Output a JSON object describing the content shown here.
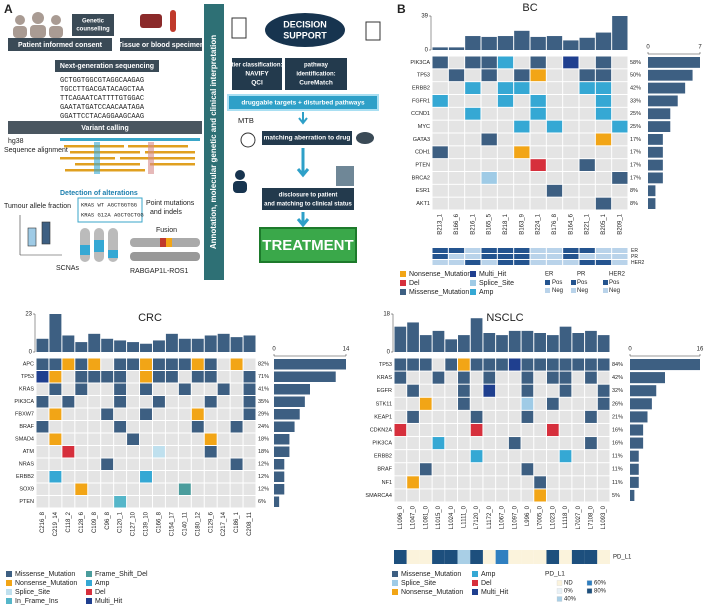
{
  "workflow": {
    "panel_label": "A",
    "consent": "Patient informed consent",
    "counselling": [
      "Genetic",
      "counselling"
    ],
    "specimen": "Tissue or blood specimen",
    "ngs": "Next-generation sequencing",
    "sequences": [
      "GCTGGTGGCGTAGGCAAGAG",
      "TGCCTTGACGATACAGCTAA",
      "TTCAGAATCATTTTGTGGAC",
      "GAATATGATCCAACAATAGA",
      "GGATTCCTACAGGAAGCAAG"
    ],
    "variant_calling": "Variant calling",
    "reference": "hg38",
    "alignment": "Sequence alignment",
    "detection": "Detection of alterations",
    "allele_fraction": "Tumour allele fraction",
    "kras": [
      "KRAS WT AGCTGGTGG",
      "KRAS G12A AGCTGCTGG"
    ],
    "point_mutations": [
      "Point mutations",
      "and indels"
    ],
    "fusion": "Fusion",
    "scnas": "SCNAs",
    "fusion_name": "RABGAP1L-ROS1",
    "annotation": "Annotation, molecular genetic and clinical interpretation",
    "decision": [
      "DECISION",
      "SUPPORT"
    ],
    "tier": [
      "tier classification:",
      "NAVIFY",
      "QCI"
    ],
    "pathway": [
      "pathway",
      "identification:",
      "CureMatch"
    ],
    "targets": "druggable targets + disturbed pathways",
    "mtb": "MTB",
    "matching": "matching aberration to drug",
    "disclosure": [
      "disclosure to patient",
      "and matching to clinical status"
    ],
    "treatment": "TREATMENT"
  },
  "chart_data": [
    {
      "type": "oncoprint",
      "panel_label": "B",
      "title": "BC",
      "samples": [
        "B213_1",
        "B166_6",
        "B216_1",
        "B165_5",
        "B218_1",
        "B163_9",
        "B224_1",
        "B176_8",
        "B164_6",
        "B221_1",
        "B205_1",
        "B209_1"
      ],
      "totals": [
        3,
        3,
        16,
        15,
        16,
        22,
        15,
        16,
        11,
        14,
        20,
        39
      ],
      "ylim": [
        0,
        39
      ],
      "yticks": [
        0,
        39
      ],
      "xlim": [
        0,
        7
      ],
      "xticks": [
        0,
        7
      ],
      "genes": [
        {
          "name": "PIK3CA",
          "pct": "58%",
          "count": 7,
          "alterations": "2.225.2.3.2."
        },
        {
          "name": "TP53",
          "pct": "50%",
          "count": 6,
          "alterations": ".2.2.20..22."
        },
        {
          "name": "ERBB2",
          "pct": "42%",
          "count": 5,
          "alterations": "..5.55...55."
        },
        {
          "name": "FGFR1",
          "pct": "33%",
          "count": 4,
          "alterations": "5...5.5...5."
        },
        {
          "name": "CCND1",
          "pct": "25%",
          "count": 3,
          "alterations": "..5...5...5."
        },
        {
          "name": "MYC",
          "pct": "25%",
          "count": 3,
          "alterations": ".....5.5...5"
        },
        {
          "name": "GATA3",
          "pct": "17%",
          "count": 2,
          "alterations": "...2......0."
        },
        {
          "name": "CDH1",
          "pct": "17%",
          "count": 2,
          "alterations": "2....0......"
        },
        {
          "name": "PTEN",
          "pct": "17%",
          "count": 2,
          "alterations": "......1..2.."
        },
        {
          "name": "BRCA2",
          "pct": "17%",
          "count": 2,
          "alterations": "...4.......2"
        },
        {
          "name": "ESR1",
          "pct": "8%",
          "count": 1,
          "alterations": ".......2...."
        },
        {
          "name": "AKT1",
          "pct": "8%",
          "count": 1,
          "alterations": "..........2."
        }
      ],
      "legend": [
        {
          "name": "Nonsense_Mutation",
          "color": "#f2a516"
        },
        {
          "name": "Del",
          "color": "#d62f3c"
        },
        {
          "name": "Missense_Mutation",
          "color": "#3d5f82"
        },
        {
          "name": "Multi_Hit",
          "color": "#1f3f8f"
        },
        {
          "name": "Splice_Site",
          "color": "#9fcbe6"
        },
        {
          "name": "Amp",
          "color": "#35a8d4"
        }
      ],
      "receptors": [
        {
          "name": "ER",
          "values": "001000110011"
        },
        {
          "name": "PR",
          "values": "011000110111"
        },
        {
          "name": "HER2",
          "values": "110100111001"
        }
      ],
      "receptor_legend": [
        {
          "name": "Pos",
          "color": "#24548f"
        },
        {
          "name": "Neg",
          "color": "#b9d3ea"
        }
      ]
    },
    {
      "type": "oncoprint",
      "title": "CRC",
      "samples": [
        "C216_8",
        "C219_14",
        "C118_2",
        "C128_6",
        "C109_8",
        "C96_8",
        "C120_1",
        "C127_10",
        "C139_10",
        "C166_8",
        "C154_17",
        "C140_11",
        "C180_12",
        "C129_6",
        "C217_14",
        "C186_1",
        "C208_11"
      ],
      "totals": [
        8,
        23,
        10,
        6,
        11,
        8,
        7,
        6,
        5,
        7,
        11,
        8,
        8,
        10,
        11,
        9,
        10
      ],
      "ylim": [
        0,
        23
      ],
      "yticks": [
        0,
        23
      ],
      "xlim": [
        0,
        14
      ],
      "xticks": [
        0,
        14
      ],
      "genes": [
        {
          "name": "APC",
          "pct": "82%",
          "count": 14,
          "alterations": "00101.00100010.1."
        },
        {
          "name": "TP53",
          "pct": "71%",
          "count": 12,
          "alterations": "71.0000.100.00..0"
        },
        {
          "name": "KRAS",
          "pct": "41%",
          "count": 7,
          "alterations": ".0.0..0.0..0..0.0"
        },
        {
          "name": "PIK3CA",
          "pct": "35%",
          "count": 6,
          "alterations": "0.0...0..0...0..0"
        },
        {
          "name": "FBXW7",
          "pct": "29%",
          "count": 5,
          "alterations": ".1...0..0...1...0"
        },
        {
          "name": "BRAF",
          "pct": "24%",
          "count": 4,
          "alterations": "0.....0.....0..0."
        },
        {
          "name": "SMAD4",
          "pct": "18%",
          "count": 3,
          "alterations": ".1.....0.....1..."
        },
        {
          "name": "ATM",
          "pct": "18%",
          "count": 3,
          "alterations": "..6......2...0..."
        },
        {
          "name": "NRAS",
          "pct": "12%",
          "count": 2,
          "alterations": ".....0.........0."
        },
        {
          "name": "ERBB2",
          "pct": "12%",
          "count": 2,
          "alterations": ".5......5........"
        },
        {
          "name": "SOX9",
          "pct": "12%",
          "count": 2,
          "alterations": "...1.......4....."
        },
        {
          "name": "PTEN",
          "pct": "6%",
          "count": 1,
          "alterations": "......3.........."
        }
      ],
      "legend": [
        {
          "name": "Missense_Mutation",
          "color": "#3d5f82"
        },
        {
          "name": "Nonsense_Mutation",
          "color": "#f2a516"
        },
        {
          "name": "Splice_Site",
          "color": "#bfe0ee"
        },
        {
          "name": "In_Frame_Ins",
          "color": "#55b6c9"
        },
        {
          "name": "Frame_Shift_Del",
          "color": "#4a9c9c"
        },
        {
          "name": "Amp",
          "color": "#35a8d4"
        },
        {
          "name": "Del",
          "color": "#d62f3c"
        },
        {
          "name": "Multi_Hit",
          "color": "#1f3f8f"
        }
      ]
    },
    {
      "type": "oncoprint",
      "title": "NSCLC",
      "samples": [
        "L1096_0",
        "L1047_0",
        "L1081_0",
        "L1015_0",
        "L1024_0",
        "L1111_0",
        "L7120_0",
        "L1172_0",
        "L1067_0",
        "L1097_0",
        "L996_0",
        "L7005_0",
        "L1023_0",
        "L1118_0",
        "L7027_0",
        "L7108_0",
        "L1093_0"
      ],
      "totals": [
        12,
        14,
        8,
        10,
        6,
        8,
        16,
        9,
        8,
        10,
        10,
        9,
        8,
        12,
        9,
        10,
        8
      ],
      "ylim": [
        0,
        18
      ],
      "yticks": [
        0,
        18
      ],
      "xlim": [
        0,
        16
      ],
      "xticks": [
        0,
        16
      ],
      "genes": [
        {
          "name": "TP53",
          "pct": "84%",
          "count": 16,
          "alterations": "000.0200050000000"
        },
        {
          "name": "KRAS",
          "pct": "42%",
          "count": 8,
          "alterations": "0..0.0.0..0.00.0."
        },
        {
          "name": "EGFR",
          "pct": "32%",
          "count": 6,
          "alterations": ".0...0.5..0..0..0"
        },
        {
          "name": "STK11",
          "pct": "26%",
          "count": 5,
          "alterations": "..2..0....1.0...0"
        },
        {
          "name": "KEAP1",
          "pct": "21%",
          "count": 4,
          "alterations": ".0....0...0....0."
        },
        {
          "name": "CDKN2A",
          "pct": "16%",
          "count": 3,
          "alterations": "4.....4.....4...."
        },
        {
          "name": "PIK3CA",
          "pct": "16%",
          "count": 3,
          "alterations": "...3.....0.....0."
        },
        {
          "name": "ERBB2",
          "pct": "11%",
          "count": 2,
          "alterations": "......3......3..."
        },
        {
          "name": "BRAF",
          "pct": "11%",
          "count": 2,
          "alterations": "..0.......0......"
        },
        {
          "name": "NF1",
          "pct": "11%",
          "count": 2,
          "alterations": ".2.........0....."
        },
        {
          "name": "SMARCA4",
          "pct": "5%",
          "count": 1,
          "alterations": "...........2....."
        }
      ],
      "legend": [
        {
          "name": "Missense_Mutation",
          "color": "#3d5f82"
        },
        {
          "name": "Splice_Site",
          "color": "#9fcbe6"
        },
        {
          "name": "Nonsense_Mutation",
          "color": "#f2a516"
        },
        {
          "name": "Amp",
          "color": "#35a8d4"
        },
        {
          "name": "Del",
          "color": "#d62f3c"
        },
        {
          "name": "Multi_Hit",
          "color": "#1f3f8f"
        }
      ],
      "pd_l1": {
        "name": "PD_L1",
        "values": "40044240300040440",
        "legend": [
          {
            "name": "ND",
            "color": "#fbf3dc"
          },
          {
            "name": "0%",
            "color": "#e8f1f7"
          },
          {
            "name": "40%",
            "color": "#a9cfe6"
          },
          {
            "name": "60%",
            "color": "#2f7fc0"
          },
          {
            "name": "80%",
            "color": "#1d4f7d"
          }
        ]
      }
    }
  ]
}
